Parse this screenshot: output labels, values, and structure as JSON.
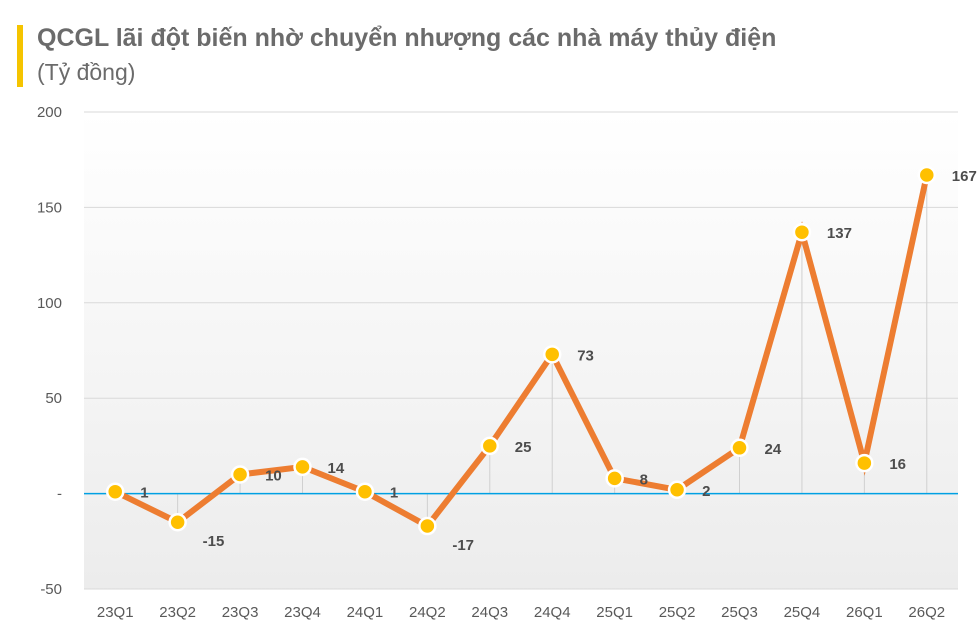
{
  "header": {
    "title": "QCGL lãi đột biến nhờ chuyển nhượng các nhà máy thủy điện",
    "subtitle": "(Tỷ đồng)"
  },
  "colors": {
    "accent": "#f5c400",
    "line": "#ed7d31",
    "marker": "#ffc000",
    "zero_line": "#00a0e3",
    "grid": "#d9d9d9"
  },
  "chart_data": {
    "type": "line",
    "title": "QCGL lãi đột biến nhờ chuyển nhượng các nhà máy thủy điện",
    "subtitle": "(Tỷ đồng)",
    "categories": [
      "23Q1",
      "23Q2",
      "23Q3",
      "23Q4",
      "24Q1",
      "24Q2",
      "24Q3",
      "24Q4",
      "25Q1",
      "25Q2",
      "25Q3",
      "25Q4",
      "26Q1",
      "26Q2"
    ],
    "series": [
      {
        "values": [
          1,
          -15,
          10,
          14,
          1,
          -17,
          25,
          73,
          8,
          2,
          24,
          137,
          16,
          167
        ]
      }
    ],
    "data_labels": [
      "1",
      "-15",
      "10",
      "14",
      "1",
      "-17",
      "25",
      "73",
      "8",
      "2",
      "24",
      "137",
      "16",
      "167"
    ],
    "ylim": [
      -50,
      200
    ],
    "yticks": [
      -50,
      0,
      50,
      100,
      150,
      200
    ],
    "ytick_labels": [
      "-50",
      "-",
      "50",
      "100",
      "150",
      "200"
    ],
    "grid": true,
    "legend": "none"
  }
}
